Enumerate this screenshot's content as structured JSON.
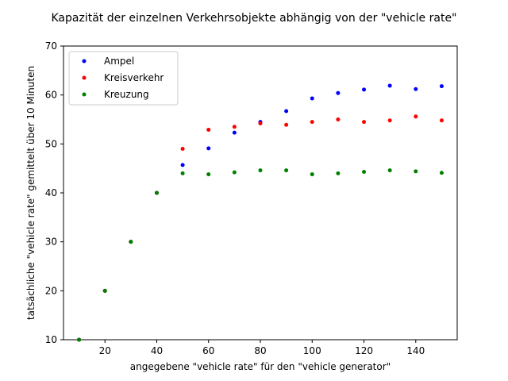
{
  "chart_data": {
    "type": "scatter",
    "title": "Kapazität der einzelnen Verkehrsobjekte abhängig von der \"vehicle rate\"",
    "xlabel": "angegebene \"vehicle rate\" für den \"vehicle generator\"",
    "ylabel": "tatsächliche \"vehicle rate\" gemittelt über 10 Minuten",
    "xlim": [
      4,
      156
    ],
    "ylim": [
      10,
      70
    ],
    "xticks": [
      20,
      40,
      60,
      80,
      100,
      120,
      140
    ],
    "yticks": [
      10,
      20,
      30,
      40,
      50,
      60,
      70
    ],
    "grid": false,
    "legend_position": "top-left",
    "series": [
      {
        "name": "Ampel",
        "color": "#0000ff",
        "points": [
          [
            10,
            10
          ],
          [
            20,
            20
          ],
          [
            30,
            30
          ],
          [
            40,
            40
          ],
          [
            50,
            45.7
          ],
          [
            60,
            49.1
          ],
          [
            70,
            52.3
          ],
          [
            80,
            54.5
          ],
          [
            90,
            56.7
          ],
          [
            100,
            59.3
          ],
          [
            110,
            60.4
          ],
          [
            120,
            61.1
          ],
          [
            130,
            61.9
          ],
          [
            140,
            61.2
          ],
          [
            150,
            61.8
          ]
        ]
      },
      {
        "name": "Kreisverkehr",
        "color": "#ff0000",
        "points": [
          [
            10,
            10
          ],
          [
            20,
            20
          ],
          [
            30,
            30
          ],
          [
            40,
            40
          ],
          [
            50,
            49
          ],
          [
            60,
            52.9
          ],
          [
            70,
            53.5
          ],
          [
            80,
            54.2
          ],
          [
            90,
            53.9
          ],
          [
            100,
            54.5
          ],
          [
            110,
            55.0
          ],
          [
            120,
            54.5
          ],
          [
            130,
            54.8
          ],
          [
            140,
            55.6
          ],
          [
            150,
            54.8
          ]
        ]
      },
      {
        "name": "Kreuzung",
        "color": "#008000",
        "points": [
          [
            10,
            10
          ],
          [
            20,
            20
          ],
          [
            30,
            30
          ],
          [
            40,
            40
          ],
          [
            50,
            44
          ],
          [
            60,
            43.8
          ],
          [
            70,
            44.2
          ],
          [
            80,
            44.6
          ],
          [
            90,
            44.6
          ],
          [
            100,
            43.8
          ],
          [
            110,
            44
          ],
          [
            120,
            44.3
          ],
          [
            130,
            44.6
          ],
          [
            140,
            44.4
          ],
          [
            150,
            44.1
          ]
        ]
      }
    ]
  }
}
